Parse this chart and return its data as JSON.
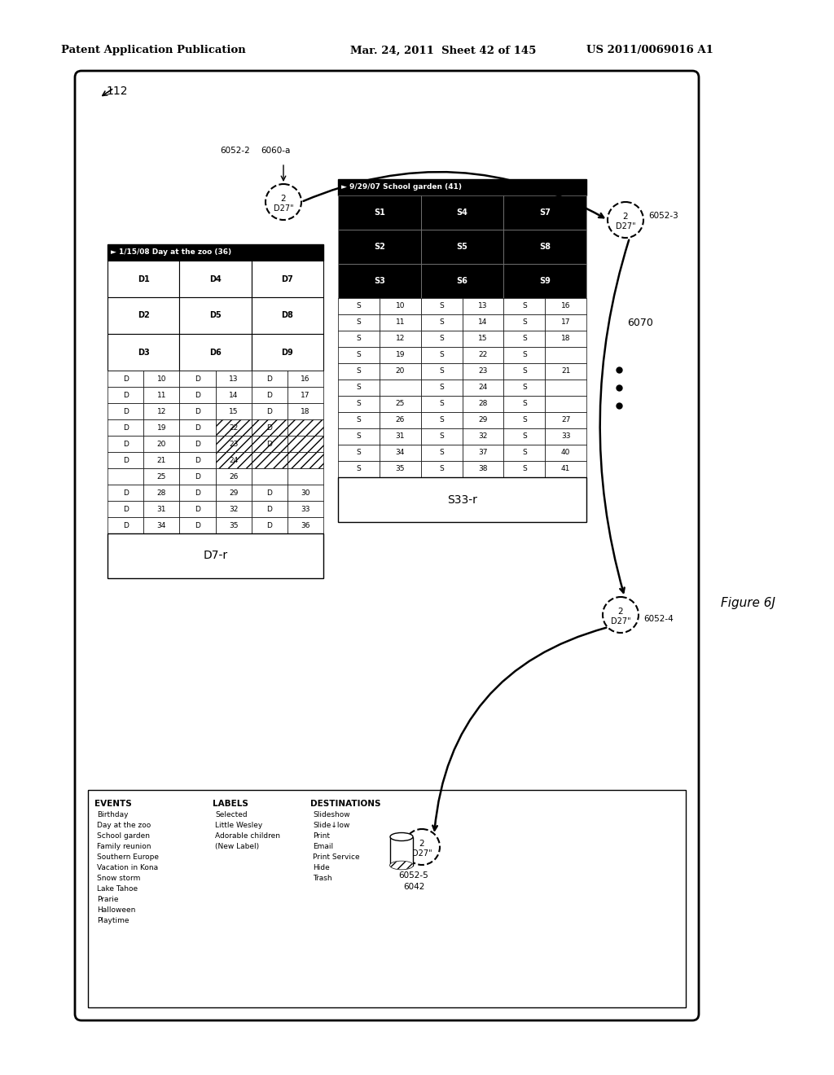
{
  "title_left": "Patent Application Publication",
  "title_center": "Mar. 24, 2011  Sheet 42 of 145",
  "title_right": "US 2011/0069016 A1",
  "figure_label": "Figure 6J",
  "bg_color": "#ffffff",
  "device_label": "112",
  "label_6052_2": "6052-2",
  "label_6060_a": "6060-a",
  "label_6052_3": "6052-3",
  "label_6070": "6070",
  "label_6052_4": "6052-4",
  "label_6052_5": "6052-5",
  "label_6042": "6042",
  "lt_header": "► 1/15/08 Day at the zoo (36)",
  "lt_footer": "D7-r",
  "rt_header": "► 9/29/07 School garden (41)",
  "rt_footer": "S33-r",
  "events_title": "EVENTS",
  "events": [
    "Birthday",
    "Day at the zoo",
    "School garden",
    "Family reunion",
    "Southern Europe",
    "Vacation in Kona",
    "Snow storm",
    "Lake Tahoe",
    "Prarie",
    "Halloween",
    "Playtime"
  ],
  "labels_title": "LABELS",
  "labels_items": [
    "Selected",
    "Little Wesley",
    "Adorable children",
    "(New Label)"
  ],
  "dest_title": "DESTINATIONS",
  "dest_items": [
    "Slideshow",
    "Slide↓low",
    "Print",
    "Email",
    "Print Service",
    "Hide",
    "Trash"
  ],
  "lt_rows": [
    [
      "D1",
      "D4",
      "D7"
    ],
    [
      "D2",
      "D5",
      "D8"
    ],
    [
      "D3",
      "D6",
      "D9"
    ],
    [
      "D",
      "10",
      "D",
      "13",
      "D",
      "16"
    ],
    [
      "D",
      "11",
      "D",
      "14",
      "D",
      "17"
    ],
    [
      "D",
      "12",
      "D",
      "15",
      "D",
      "18"
    ],
    [
      "D",
      "19",
      "D",
      "22",
      "D",
      ""
    ],
    [
      "D",
      "20",
      "D",
      "23",
      "D",
      ""
    ],
    [
      "D",
      "21",
      "D",
      "24",
      "",
      ""
    ],
    [
      "",
      "25",
      "D",
      "26",
      "",
      ""
    ],
    [
      "D",
      "28",
      "D",
      "29",
      "D",
      "30"
    ],
    [
      "D",
      "31",
      "D",
      "32",
      "D",
      "33"
    ],
    [
      "D",
      "34",
      "D",
      "35",
      "D",
      "36"
    ]
  ],
  "rt_rows_black": [
    [
      "S1",
      "S4",
      "S7"
    ],
    [
      "S2",
      "S5",
      "S8"
    ],
    [
      "S3",
      "S6",
      "S9"
    ]
  ],
  "rt_rows_white": [
    [
      "S",
      "10",
      "S",
      "13",
      "S",
      "16"
    ],
    [
      "S",
      "11",
      "S",
      "14",
      "S",
      "17"
    ],
    [
      "S",
      "12",
      "S",
      "15",
      "S",
      "18"
    ],
    [
      "S",
      "19",
      "S",
      "22",
      "S",
      ""
    ],
    [
      "S",
      "20",
      "S",
      "23",
      "S",
      "21"
    ],
    [
      "S",
      "",
      "S",
      "24",
      "S",
      ""
    ],
    [
      "S",
      "25",
      "S",
      "28",
      "S",
      ""
    ],
    [
      "S",
      "26",
      "S",
      "29",
      "S",
      "27"
    ],
    [
      "S",
      "31",
      "S",
      "32",
      "S",
      "33"
    ],
    [
      "S",
      "34",
      "S",
      "37",
      "S",
      "40"
    ],
    [
      "S",
      "35",
      "S",
      "38",
      "S",
      "41"
    ]
  ]
}
